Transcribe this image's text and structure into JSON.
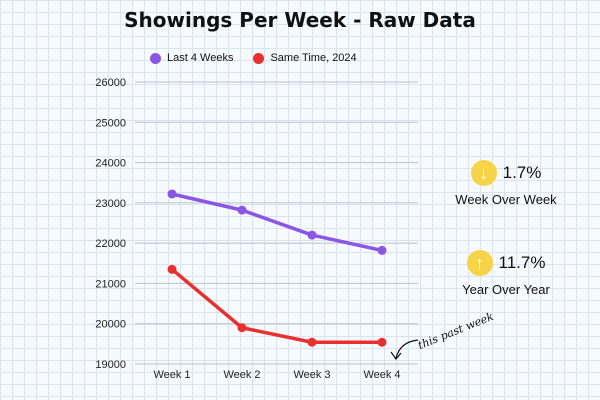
{
  "chart_data": {
    "type": "line",
    "title": "Showings Per Week - Raw Data",
    "categories": [
      "Week 1",
      "Week 2",
      "Week 3",
      "Week 4"
    ],
    "series": [
      {
        "name": "Last 4 Weeks",
        "values": [
          23220,
          22820,
          22200,
          21820
        ],
        "color": "#8b55e6"
      },
      {
        "name": "Same Time, 2024",
        "values": [
          21350,
          19900,
          19540,
          19540
        ],
        "color": "#ea2f2f"
      }
    ],
    "ylim": [
      19000,
      26000
    ],
    "yticks": [
      19000,
      20000,
      21000,
      22000,
      23000,
      24000,
      25000,
      26000
    ],
    "grid": true,
    "legend_position": "top"
  },
  "stats": {
    "wow": {
      "value": "1.7%",
      "label": "Week Over Week",
      "direction": "down",
      "icon": "arrow-down-icon"
    },
    "yoy": {
      "value": "11.7%",
      "label": "Year Over Year",
      "direction": "up",
      "icon": "arrow-up-icon"
    }
  },
  "annotation": {
    "text": "this past week"
  },
  "colors": {
    "icon_bg": "#f7d347",
    "purple": "#8b55e6",
    "red": "#ea2f2f"
  }
}
